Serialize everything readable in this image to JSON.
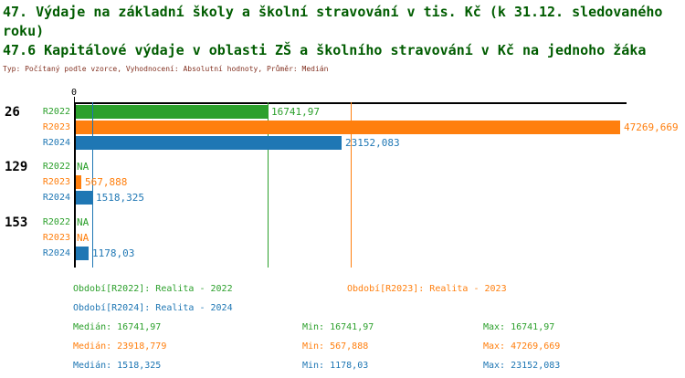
{
  "colors": {
    "R2022": "#2ca02c",
    "R2023": "#ff7f0e",
    "R2024": "#1f77b4",
    "title": "#005c00",
    "meta": "#833222",
    "axis": "#000000",
    "group_label": "#000000"
  },
  "header": {
    "title": "47. Výdaje na základní školy a školní stravování v tis. Kč (k 31.12. sledovaného roku)",
    "indicator_title": "47.6 Kapitálové výdaje v oblasti ZŠ a školního stravování v Kč na jednoho žáka",
    "meta": "Typ: Počítaný podle vzorce, Vyhodnocení: Absolutní hodnoty, Průměr: Medián"
  },
  "chart_data": {
    "type": "bar",
    "orientation": "horizontal",
    "grid": false,
    "x_axis": {
      "zero_label": "0",
      "min": 0,
      "max_data_value": 47269.669
    },
    "series": [
      {
        "id": "R2022",
        "label": "R2022",
        "color_key": "R2022",
        "median": 16741.97
      },
      {
        "id": "R2023",
        "label": "R2023",
        "color_key": "R2023",
        "median": 23918.779
      },
      {
        "id": "R2024",
        "label": "R2024",
        "color_key": "R2024",
        "median": 1518.325
      }
    ],
    "groups": [
      {
        "name": "26",
        "bars": [
          {
            "series": "R2022",
            "value": 16741.97,
            "label": "16741,97"
          },
          {
            "series": "R2023",
            "value": 47269.669,
            "label": "47269,669"
          },
          {
            "series": "R2024",
            "value": 23152.083,
            "label": "23152,083"
          }
        ]
      },
      {
        "name": "129",
        "bars": [
          {
            "series": "R2022",
            "value": null,
            "label": "NA"
          },
          {
            "series": "R2023",
            "value": 567.888,
            "label": "567,888"
          },
          {
            "series": "R2024",
            "value": 1518.325,
            "label": "1518,325"
          }
        ]
      },
      {
        "name": "153",
        "bars": [
          {
            "series": "R2022",
            "value": null,
            "label": "NA"
          },
          {
            "series": "R2023",
            "value": null,
            "label": "NA"
          },
          {
            "series": "R2024",
            "value": 1178.03,
            "label": "1178,03"
          }
        ]
      }
    ]
  },
  "legend": {
    "items": [
      {
        "label": "Období[R2022]: Realita - 2022",
        "series": "R2022"
      },
      {
        "label": "Období[R2023]: Realita - 2023",
        "series": "R2023"
      },
      {
        "label": "Období[R2024]: Realita - 2024",
        "series": "R2024"
      }
    ]
  },
  "stats": {
    "rows": [
      {
        "series": "R2022",
        "median": "Medián: 16741,97",
        "min": "Min: 16741,97",
        "max": "Max: 16741,97"
      },
      {
        "series": "R2023",
        "median": "Medián: 23918,779",
        "min": "Min: 567,888",
        "max": "Max: 47269,669"
      },
      {
        "series": "R2024",
        "median": "Medián: 1518,325",
        "min": "Min: 1178,03",
        "max": "Max: 23152,083"
      }
    ]
  }
}
